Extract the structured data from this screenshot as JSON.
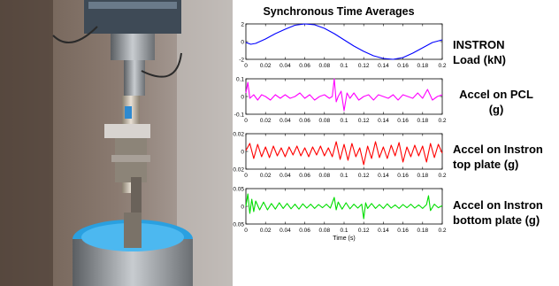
{
  "figure_title": "Synchronous Time Averages",
  "photo": {
    "description_icon": "test-rig-photo"
  },
  "right_labels": [
    {
      "lines": [
        "INSTRON",
        "Load (kN)"
      ],
      "align": "left"
    },
    {
      "lines": [
        "Accel on PCL",
        "(g)"
      ],
      "align": "center"
    },
    {
      "lines": [
        "Accel on Instron",
        "top plate (g)"
      ],
      "align": "left"
    },
    {
      "lines": [
        "Accel on Instron",
        "bottom plate (g)"
      ],
      "align": "left"
    }
  ],
  "chart_data": [
    {
      "type": "line",
      "xlabel": "",
      "ylabel": "",
      "xlim": [
        0,
        0.2
      ],
      "ylim": [
        -2,
        2
      ],
      "xticks": [
        0,
        0.02,
        0.04,
        0.06,
        0.08,
        0.1,
        0.12,
        0.14,
        0.16,
        0.18,
        0.2
      ],
      "yticks": [
        -2,
        0,
        2
      ],
      "color": "#0000ff",
      "series": [
        {
          "x": [
            0,
            0.005,
            0.01,
            0.02,
            0.03,
            0.04,
            0.05,
            0.06,
            0.07,
            0.08,
            0.09,
            0.1,
            0.11,
            0.12,
            0.13,
            0.14,
            0.15,
            0.16,
            0.17,
            0.18,
            0.19,
            0.2
          ],
          "y": [
            -0.1,
            -0.3,
            -0.2,
            0.3,
            0.9,
            1.4,
            1.85,
            2.0,
            1.9,
            1.5,
            0.9,
            0.2,
            -0.5,
            -1.1,
            -1.6,
            -1.9,
            -2.0,
            -1.8,
            -1.3,
            -0.7,
            -0.1,
            0.2
          ]
        }
      ]
    },
    {
      "type": "line",
      "xlabel": "",
      "ylabel": "",
      "xlim": [
        0,
        0.2
      ],
      "ylim": [
        -0.1,
        0.1
      ],
      "xticks": [
        0,
        0.02,
        0.04,
        0.06,
        0.08,
        0.1,
        0.12,
        0.14,
        0.16,
        0.18,
        0.2
      ],
      "yticks": [
        -0.1,
        0,
        0.1
      ],
      "color": "#ff00ff",
      "series": [
        {
          "x": [
            0,
            0.002,
            0.004,
            0.008,
            0.012,
            0.016,
            0.02,
            0.025,
            0.03,
            0.035,
            0.04,
            0.045,
            0.05,
            0.055,
            0.06,
            0.065,
            0.07,
            0.075,
            0.08,
            0.085,
            0.088,
            0.09,
            0.092,
            0.094,
            0.097,
            0.1,
            0.103,
            0.106,
            0.11,
            0.115,
            0.12,
            0.125,
            0.13,
            0.135,
            0.14,
            0.145,
            0.15,
            0.155,
            0.16,
            0.165,
            0.17,
            0.175,
            0.18,
            0.185,
            0.19,
            0.195,
            0.2
          ],
          "y": [
            0.02,
            0.08,
            -0.01,
            0.01,
            -0.02,
            0.01,
            0.0,
            -0.02,
            0.01,
            -0.01,
            0.01,
            -0.01,
            0.0,
            0.02,
            -0.01,
            0.01,
            -0.02,
            0.0,
            0.01,
            -0.01,
            0.0,
            0.12,
            -0.03,
            0.0,
            0.03,
            -0.08,
            0.02,
            -0.01,
            0.02,
            -0.02,
            0.0,
            0.01,
            -0.02,
            0.01,
            0.0,
            -0.01,
            0.01,
            -0.02,
            0.01,
            0.0,
            -0.01,
            0.02,
            -0.01,
            0.04,
            -0.02,
            0.0,
            0.01
          ]
        }
      ]
    },
    {
      "type": "line",
      "xlabel": "",
      "ylabel": "",
      "xlim": [
        0,
        0.2
      ],
      "ylim": [
        -0.02,
        0.02
      ],
      "xticks": [
        0,
        0.02,
        0.04,
        0.06,
        0.08,
        0.1,
        0.12,
        0.14,
        0.16,
        0.18,
        0.2
      ],
      "yticks": [
        -0.02,
        0,
        0.02
      ],
      "color": "#ff0000",
      "series": [
        {
          "x": [
            0,
            0.004,
            0.008,
            0.012,
            0.016,
            0.02,
            0.024,
            0.028,
            0.032,
            0.036,
            0.04,
            0.044,
            0.048,
            0.052,
            0.056,
            0.06,
            0.064,
            0.068,
            0.072,
            0.076,
            0.08,
            0.084,
            0.088,
            0.092,
            0.096,
            0.1,
            0.104,
            0.108,
            0.112,
            0.116,
            0.12,
            0.124,
            0.128,
            0.132,
            0.136,
            0.14,
            0.144,
            0.148,
            0.152,
            0.156,
            0.16,
            0.164,
            0.168,
            0.172,
            0.176,
            0.18,
            0.184,
            0.188,
            0.192,
            0.196,
            0.2
          ],
          "y": [
            0.001,
            0.009,
            -0.008,
            0.008,
            -0.006,
            0.005,
            -0.007,
            0.006,
            -0.005,
            0.004,
            -0.006,
            0.005,
            -0.004,
            0.006,
            -0.005,
            0.004,
            -0.006,
            0.005,
            -0.004,
            0.006,
            -0.005,
            0.004,
            -0.006,
            0.011,
            -0.009,
            0.008,
            -0.01,
            0.009,
            -0.006,
            0.004,
            -0.015,
            0.006,
            -0.008,
            0.011,
            -0.007,
            0.005,
            -0.008,
            0.007,
            -0.005,
            0.01,
            -0.012,
            0.005,
            -0.006,
            0.007,
            -0.005,
            0.006,
            -0.012,
            0.009,
            -0.007,
            0.008,
            -0.002
          ]
        }
      ]
    },
    {
      "type": "line",
      "xlabel": "Time (s)",
      "ylabel": "",
      "xlim": [
        0,
        0.2
      ],
      "ylim": [
        -0.05,
        0.05
      ],
      "xticks": [
        0,
        0.02,
        0.04,
        0.06,
        0.08,
        0.1,
        0.12,
        0.14,
        0.16,
        0.18,
        0.2
      ],
      "yticks": [
        -0.05,
        0,
        0.05
      ],
      "color": "#00dd00",
      "series": [
        {
          "x": [
            0,
            0.002,
            0.004,
            0.006,
            0.008,
            0.01,
            0.014,
            0.018,
            0.022,
            0.026,
            0.03,
            0.034,
            0.038,
            0.042,
            0.046,
            0.05,
            0.054,
            0.058,
            0.062,
            0.066,
            0.07,
            0.074,
            0.078,
            0.082,
            0.086,
            0.09,
            0.092,
            0.094,
            0.098,
            0.102,
            0.106,
            0.11,
            0.114,
            0.118,
            0.12,
            0.122,
            0.124,
            0.128,
            0.132,
            0.136,
            0.14,
            0.144,
            0.148,
            0.152,
            0.156,
            0.16,
            0.164,
            0.168,
            0.172,
            0.176,
            0.18,
            0.184,
            0.186,
            0.188,
            0.192,
            0.196,
            0.2
          ],
          "y": [
            0.0,
            0.035,
            -0.02,
            0.02,
            -0.015,
            0.015,
            -0.01,
            0.012,
            -0.01,
            0.008,
            -0.008,
            0.01,
            -0.006,
            0.008,
            -0.007,
            0.006,
            -0.008,
            0.007,
            -0.005,
            0.006,
            -0.006,
            0.005,
            -0.004,
            0.006,
            -0.005,
            0.025,
            -0.01,
            0.012,
            -0.008,
            0.01,
            -0.007,
            0.006,
            -0.005,
            0.006,
            -0.035,
            0.01,
            -0.006,
            0.008,
            -0.006,
            0.005,
            -0.006,
            0.007,
            -0.005,
            0.004,
            -0.006,
            0.005,
            -0.004,
            0.006,
            -0.005,
            0.004,
            -0.006,
            0.005,
            0.03,
            -0.012,
            0.006,
            -0.004,
            0.002
          ]
        }
      ]
    }
  ]
}
